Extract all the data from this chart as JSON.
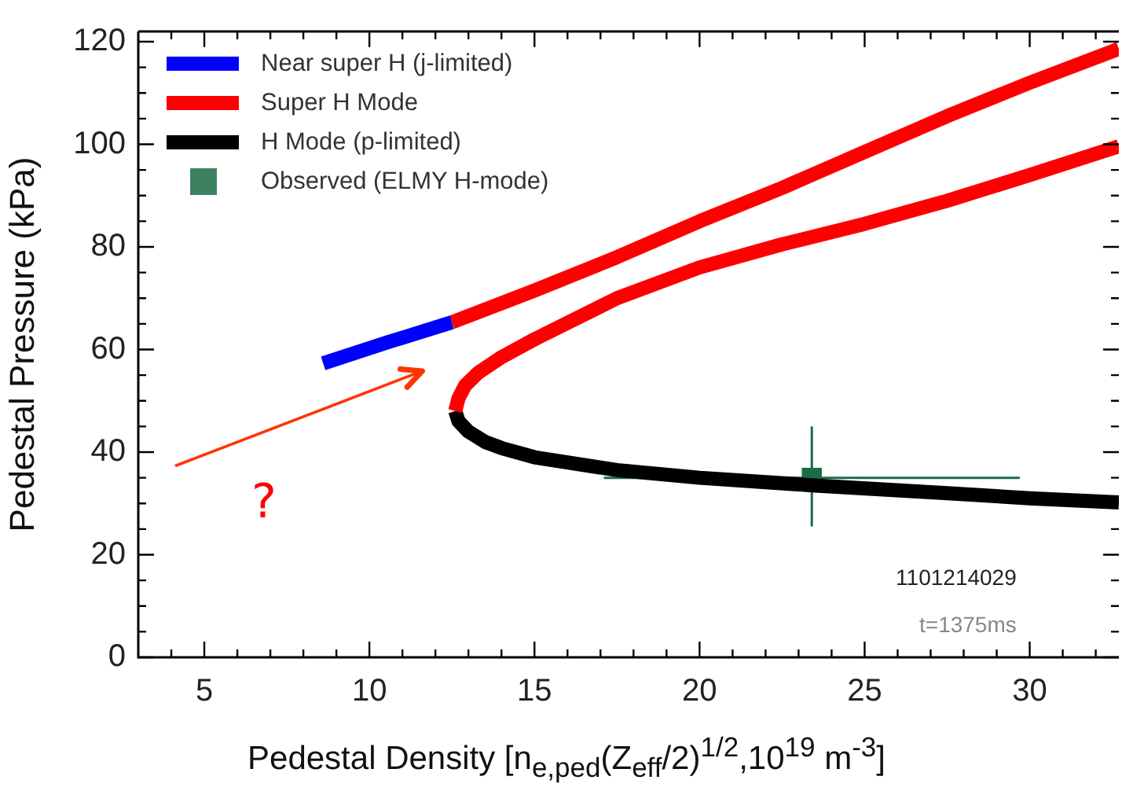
{
  "chart_data": {
    "type": "line",
    "xlabel": "Pedestal Density [n$_{e,ped}$(Z$_{eff}$/2)$^{1/2}$,10$^{19}$ m$^{-3}$]",
    "ylabel": "Pedestal Pressure (kPa)",
    "xlim": [
      3,
      32.7
    ],
    "ylim": [
      0,
      122
    ],
    "xticks": [
      {
        "value": 4,
        "label": null
      },
      5,
      {
        "value": 6,
        "label": null
      },
      {
        "value": 7,
        "label": null
      },
      {
        "value": 8,
        "label": null
      },
      {
        "value": 9,
        "label": null
      },
      10,
      {
        "value": 11,
        "label": null
      },
      {
        "value": 12,
        "label": null
      },
      {
        "value": 13,
        "label": null
      },
      {
        "value": 14,
        "label": null
      },
      15,
      {
        "value": 16,
        "label": null
      },
      {
        "value": 17,
        "label": null
      },
      {
        "value": 18,
        "label": null
      },
      {
        "value": 19,
        "label": null
      },
      20,
      {
        "value": 21,
        "label": null
      },
      {
        "value": 22,
        "label": null
      },
      {
        "value": 23,
        "label": null
      },
      {
        "value": 24,
        "label": null
      },
      25,
      {
        "value": 26,
        "label": null
      },
      {
        "value": 27,
        "label": null
      },
      {
        "value": 28,
        "label": null
      },
      {
        "value": 29,
        "label": null
      },
      30,
      {
        "value": 31,
        "label": null
      },
      {
        "value": 32,
        "label": null
      }
    ],
    "yticks": [
      0,
      {
        "value": 5,
        "label": null
      },
      {
        "value": 10,
        "label": null
      },
      {
        "value": 15,
        "label": null
      },
      20,
      {
        "value": 25,
        "label": null
      },
      {
        "value": 30,
        "label": null
      },
      {
        "value": 35,
        "label": null
      },
      40,
      {
        "value": 45,
        "label": null
      },
      {
        "value": 50,
        "label": null
      },
      {
        "value": 55,
        "label": null
      },
      60,
      {
        "value": 65,
        "label": null
      },
      {
        "value": 70,
        "label": null
      },
      {
        "value": 75,
        "label": null
      },
      80,
      {
        "value": 85,
        "label": null
      },
      {
        "value": 90,
        "label": null
      },
      {
        "value": 95,
        "label": null
      },
      100,
      {
        "value": 105,
        "label": null
      },
      {
        "value": 110,
        "label": null
      },
      {
        "value": 115,
        "label": null
      },
      120
    ],
    "legend": "top left",
    "marker": "none",
    "line_style": "solid",
    "series": [
      {
        "name": "Near super H (j-limited)",
        "color": "#0000ff",
        "x": [
          8.6,
          10.5,
          12.5
        ],
        "values": [
          57.3,
          61.3,
          65.3
        ]
      },
      {
        "name": "Super H Mode",
        "color": "#ff0000",
        "x": [
          12.5,
          15,
          17.5,
          20,
          22.5,
          25,
          27.5,
          30,
          32.7,
          null,
          12.6,
          12.7,
          12.9,
          13.3,
          14,
          15,
          17.5,
          20,
          22.5,
          25,
          27.5,
          30,
          32.7
        ],
        "values": [
          65.3,
          71.5,
          78,
          85,
          91.5,
          98.5,
          105.5,
          112,
          118.6,
          null,
          48,
          50.5,
          53,
          55.5,
          58.5,
          62,
          70,
          76,
          80.5,
          84.5,
          89,
          94,
          99.6
        ]
      },
      {
        "name": "H Mode (p-limited)",
        "color": "#000000",
        "x": [
          12.6,
          12.7,
          13,
          13.5,
          14,
          15,
          17.5,
          20,
          23.5,
          27.5,
          30,
          32.7
        ],
        "values": [
          48,
          46,
          44,
          42,
          40.8,
          39,
          36.5,
          35,
          33.5,
          32,
          31,
          30.2
        ]
      },
      {
        "name": "Observed (ELMY H-mode)",
        "type": "scatter",
        "marker": "square",
        "color": "#1b6b45",
        "x": [
          23.4
        ],
        "values": [
          35
        ],
        "errors": [
          [
            25.5,
            45
          ]
        ],
        "xerrors": [
          [
            17.1,
            29.7
          ]
        ]
      }
    ],
    "annotations": [
      "1101214029",
      "t=1375ms",
      "?"
    ]
  }
}
